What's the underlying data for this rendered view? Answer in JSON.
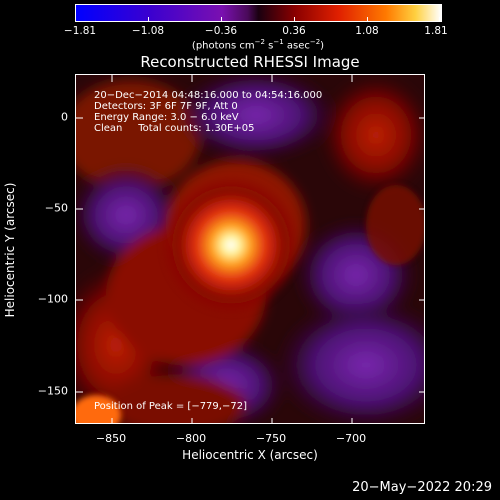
{
  "colorbar": {
    "ticks": [
      "−1.81",
      "−1.08",
      "−0.36",
      "0.36",
      "1.08",
      "1.81"
    ],
    "unit_prefix": "(photons cm",
    "unit_exp1": "−2",
    "unit_mid1": " s",
    "unit_exp2": "−1",
    "unit_mid2": " asec",
    "unit_exp3": "−2",
    "unit_suffix": ")"
  },
  "title": "Reconstructed RHESSI Image",
  "info": {
    "time_range": "20−Dec−2014 04:48:16.000 to 04:54:16.000",
    "detectors": "Detectors: 3F 6F 7F 9F, Att 0",
    "energy": "Energy Range: 3.0 − 6.0 keV",
    "clean": "Clean     Total counts: 1.30E+05",
    "peak": "Position of Peak = [−779,−72]"
  },
  "x_axis": {
    "label": "Heliocentric X (arcsec)",
    "ticks": [
      "−850",
      "−800",
      "−750",
      "−700"
    ]
  },
  "y_axis": {
    "label": "Heliocentric Y (arcsec)",
    "ticks": [
      "0",
      "−50",
      "−100",
      "−150"
    ]
  },
  "footer_date": "20−May−2022 20:29"
}
